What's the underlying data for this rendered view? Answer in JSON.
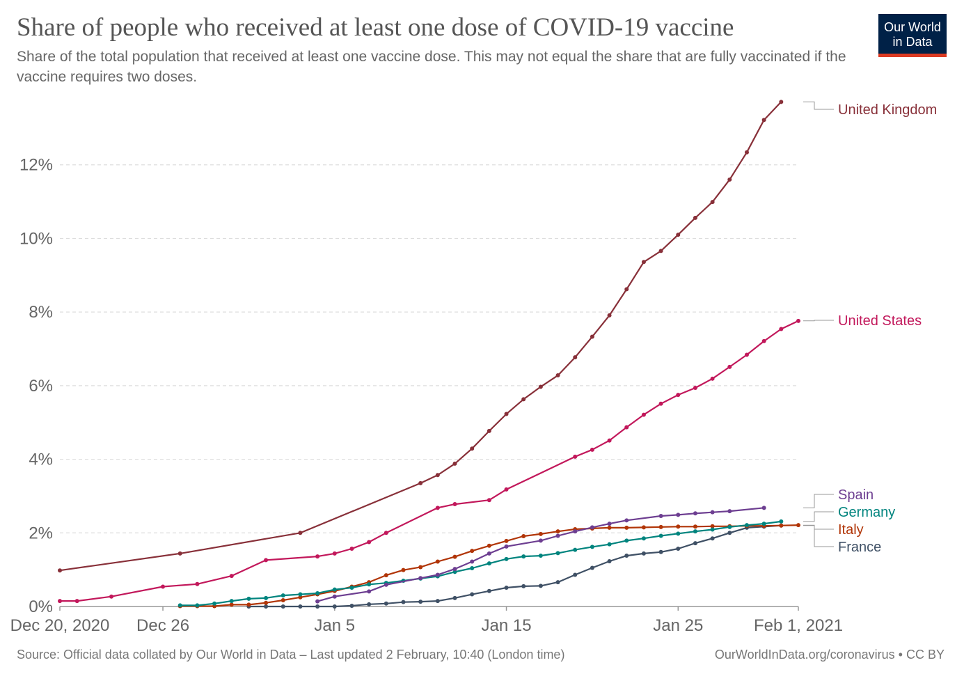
{
  "title": "Share of people who received at least one dose of COVID-19 vaccine",
  "subtitle": "Share of the total population that received at least one vaccine dose. This may not equal the share that are fully vaccinated if the vaccine requires two doses.",
  "logo": {
    "line1": "Our World",
    "line2": "in Data",
    "bg": "#002147",
    "accent": "#dc3a22"
  },
  "footer": {
    "source": "Source: Official data collated by Our World in Data – Last updated 2 February, 10:40 (London time)",
    "credit": "OurWorldInData.org/coronavirus • CC BY"
  },
  "chart_data": {
    "type": "line",
    "x_unit": "date",
    "x_range": [
      "2020-12-20",
      "2021-02-01"
    ],
    "x_ticks": [
      {
        "date": "2020-12-20",
        "label": "Dec 20, 2020"
      },
      {
        "date": "2020-12-26",
        "label": "Dec 26"
      },
      {
        "date": "2021-01-05",
        "label": "Jan 5"
      },
      {
        "date": "2021-01-15",
        "label": "Jan 15"
      },
      {
        "date": "2021-01-25",
        "label": "Jan 25"
      },
      {
        "date": "2021-02-01",
        "label": "Feb 1, 2021"
      }
    ],
    "y_range": [
      0,
      14
    ],
    "y_ticks": [
      {
        "value": 0,
        "label": "0%"
      },
      {
        "value": 2,
        "label": "2%"
      },
      {
        "value": 4,
        "label": "4%"
      },
      {
        "value": 6,
        "label": "6%"
      },
      {
        "value": 8,
        "label": "8%"
      },
      {
        "value": 10,
        "label": "10%"
      },
      {
        "value": 12,
        "label": "12%"
      }
    ],
    "grid": "horizontal dashed",
    "legend": "right, line-end labels",
    "series": [
      {
        "name": "United Kingdom",
        "color": "#883039",
        "points": [
          [
            "2020-12-20",
            0.98
          ],
          [
            "2020-12-27",
            1.44
          ],
          [
            "2021-01-03",
            2.0
          ],
          [
            "2021-01-10",
            3.35
          ],
          [
            "2021-01-11",
            3.57
          ],
          [
            "2021-01-12",
            3.88
          ],
          [
            "2021-01-13",
            4.29
          ],
          [
            "2021-01-14",
            4.77
          ],
          [
            "2021-01-15",
            5.23
          ],
          [
            "2021-01-16",
            5.63
          ],
          [
            "2021-01-17",
            5.97
          ],
          [
            "2021-01-18",
            6.28
          ],
          [
            "2021-01-19",
            6.77
          ],
          [
            "2021-01-20",
            7.33
          ],
          [
            "2021-01-21",
            7.91
          ],
          [
            "2021-01-22",
            8.62
          ],
          [
            "2021-01-23",
            9.36
          ],
          [
            "2021-01-24",
            9.66
          ],
          [
            "2021-01-25",
            10.1
          ],
          [
            "2021-01-26",
            10.56
          ],
          [
            "2021-01-27",
            10.99
          ],
          [
            "2021-01-28",
            11.6
          ],
          [
            "2021-01-29",
            12.34
          ],
          [
            "2021-01-30",
            13.22
          ],
          [
            "2021-01-31",
            13.71
          ]
        ]
      },
      {
        "name": "United States",
        "color": "#c2185b",
        "points": [
          [
            "2020-12-20",
            0.15
          ],
          [
            "2020-12-21",
            0.15
          ],
          [
            "2020-12-23",
            0.27
          ],
          [
            "2020-12-26",
            0.54
          ],
          [
            "2020-12-28",
            0.61
          ],
          [
            "2020-12-30",
            0.83
          ],
          [
            "2021-01-01",
            1.26
          ],
          [
            "2021-01-04",
            1.36
          ],
          [
            "2021-01-05",
            1.44
          ],
          [
            "2021-01-06",
            1.57
          ],
          [
            "2021-01-07",
            1.75
          ],
          [
            "2021-01-08",
            2.0
          ],
          [
            "2021-01-11",
            2.68
          ],
          [
            "2021-01-12",
            2.78
          ],
          [
            "2021-01-14",
            2.89
          ],
          [
            "2021-01-15",
            3.18
          ],
          [
            "2021-01-19",
            4.07
          ],
          [
            "2021-01-20",
            4.26
          ],
          [
            "2021-01-21",
            4.51
          ],
          [
            "2021-01-22",
            4.87
          ],
          [
            "2021-01-23",
            5.21
          ],
          [
            "2021-01-24",
            5.51
          ],
          [
            "2021-01-25",
            5.75
          ],
          [
            "2021-01-26",
            5.94
          ],
          [
            "2021-01-27",
            6.19
          ],
          [
            "2021-01-28",
            6.51
          ],
          [
            "2021-01-29",
            6.84
          ],
          [
            "2021-01-30",
            7.21
          ],
          [
            "2021-01-31",
            7.54
          ],
          [
            "2021-02-01",
            7.76
          ]
        ]
      },
      {
        "name": "Spain",
        "color": "#6d3e91",
        "points": [
          [
            "2021-01-04",
            0.14
          ],
          [
            "2021-01-05",
            0.27
          ],
          [
            "2021-01-07",
            0.41
          ],
          [
            "2021-01-08",
            0.59
          ],
          [
            "2021-01-10",
            0.77
          ],
          [
            "2021-01-11",
            0.86
          ],
          [
            "2021-01-12",
            1.02
          ],
          [
            "2021-01-13",
            1.22
          ],
          [
            "2021-01-14",
            1.44
          ],
          [
            "2021-01-15",
            1.63
          ],
          [
            "2021-01-17",
            1.79
          ],
          [
            "2021-01-18",
            1.92
          ],
          [
            "2021-01-19",
            2.04
          ],
          [
            "2021-01-20",
            2.15
          ],
          [
            "2021-01-21",
            2.25
          ],
          [
            "2021-01-22",
            2.34
          ],
          [
            "2021-01-24",
            2.46
          ],
          [
            "2021-01-25",
            2.49
          ],
          [
            "2021-01-26",
            2.53
          ],
          [
            "2021-01-27",
            2.56
          ],
          [
            "2021-01-28",
            2.59
          ],
          [
            "2021-01-30",
            2.68
          ]
        ]
      },
      {
        "name": "Germany",
        "color": "#00847e",
        "points": [
          [
            "2020-12-27",
            0.03
          ],
          [
            "2020-12-28",
            0.03
          ],
          [
            "2020-12-29",
            0.08
          ],
          [
            "2020-12-30",
            0.15
          ],
          [
            "2020-12-31",
            0.21
          ],
          [
            "2021-01-01",
            0.23
          ],
          [
            "2021-01-02",
            0.3
          ],
          [
            "2021-01-03",
            0.33
          ],
          [
            "2021-01-04",
            0.36
          ],
          [
            "2021-01-05",
            0.46
          ],
          [
            "2021-01-06",
            0.51
          ],
          [
            "2021-01-07",
            0.6
          ],
          [
            "2021-01-08",
            0.64
          ],
          [
            "2021-01-09",
            0.7
          ],
          [
            "2021-01-10",
            0.76
          ],
          [
            "2021-01-11",
            0.82
          ],
          [
            "2021-01-12",
            0.94
          ],
          [
            "2021-01-13",
            1.04
          ],
          [
            "2021-01-14",
            1.17
          ],
          [
            "2021-01-15",
            1.29
          ],
          [
            "2021-01-16",
            1.36
          ],
          [
            "2021-01-17",
            1.38
          ],
          [
            "2021-01-18",
            1.45
          ],
          [
            "2021-01-19",
            1.54
          ],
          [
            "2021-01-20",
            1.62
          ],
          [
            "2021-01-21",
            1.69
          ],
          [
            "2021-01-22",
            1.79
          ],
          [
            "2021-01-23",
            1.85
          ],
          [
            "2021-01-24",
            1.92
          ],
          [
            "2021-01-25",
            1.98
          ],
          [
            "2021-01-26",
            2.04
          ],
          [
            "2021-01-27",
            2.09
          ],
          [
            "2021-01-28",
            2.16
          ],
          [
            "2021-01-29",
            2.21
          ],
          [
            "2021-01-30",
            2.25
          ],
          [
            "2021-01-31",
            2.31
          ]
        ]
      },
      {
        "name": "Italy",
        "color": "#b13507",
        "points": [
          [
            "2020-12-27",
            0.01
          ],
          [
            "2020-12-28",
            0.01
          ],
          [
            "2020-12-29",
            0.01
          ],
          [
            "2020-12-30",
            0.05
          ],
          [
            "2020-12-31",
            0.05
          ],
          [
            "2021-01-01",
            0.1
          ],
          [
            "2021-01-02",
            0.17
          ],
          [
            "2021-01-03",
            0.25
          ],
          [
            "2021-01-04",
            0.33
          ],
          [
            "2021-01-05",
            0.42
          ],
          [
            "2021-01-06",
            0.54
          ],
          [
            "2021-01-07",
            0.66
          ],
          [
            "2021-01-08",
            0.85
          ],
          [
            "2021-01-09",
            0.99
          ],
          [
            "2021-01-10",
            1.07
          ],
          [
            "2021-01-11",
            1.22
          ],
          [
            "2021-01-12",
            1.35
          ],
          [
            "2021-01-13",
            1.51
          ],
          [
            "2021-01-14",
            1.65
          ],
          [
            "2021-01-15",
            1.78
          ],
          [
            "2021-01-16",
            1.91
          ],
          [
            "2021-01-17",
            1.97
          ],
          [
            "2021-01-18",
            2.04
          ],
          [
            "2021-01-19",
            2.1
          ],
          [
            "2021-01-20",
            2.12
          ],
          [
            "2021-01-21",
            2.14
          ],
          [
            "2021-01-22",
            2.14
          ],
          [
            "2021-01-23",
            2.15
          ],
          [
            "2021-01-24",
            2.16
          ],
          [
            "2021-01-25",
            2.17
          ],
          [
            "2021-01-26",
            2.17
          ],
          [
            "2021-01-27",
            2.18
          ],
          [
            "2021-01-28",
            2.18
          ],
          [
            "2021-01-29",
            2.19
          ],
          [
            "2021-01-30",
            2.19
          ],
          [
            "2021-01-31",
            2.2
          ],
          [
            "2021-02-01",
            2.21
          ]
        ]
      },
      {
        "name": "France",
        "color": "#3f5065",
        "points": [
          [
            "2020-12-31",
            0.0
          ],
          [
            "2021-01-01",
            0.0
          ],
          [
            "2021-01-02",
            0.0
          ],
          [
            "2021-01-03",
            0.0
          ],
          [
            "2021-01-04",
            0.0
          ],
          [
            "2021-01-05",
            0.0
          ],
          [
            "2021-01-06",
            0.02
          ],
          [
            "2021-01-07",
            0.06
          ],
          [
            "2021-01-08",
            0.08
          ],
          [
            "2021-01-09",
            0.12
          ],
          [
            "2021-01-10",
            0.13
          ],
          [
            "2021-01-11",
            0.15
          ],
          [
            "2021-01-12",
            0.23
          ],
          [
            "2021-01-13",
            0.33
          ],
          [
            "2021-01-14",
            0.42
          ],
          [
            "2021-01-15",
            0.51
          ],
          [
            "2021-01-16",
            0.55
          ],
          [
            "2021-01-17",
            0.56
          ],
          [
            "2021-01-18",
            0.66
          ],
          [
            "2021-01-19",
            0.86
          ],
          [
            "2021-01-20",
            1.05
          ],
          [
            "2021-01-21",
            1.23
          ],
          [
            "2021-01-22",
            1.38
          ],
          [
            "2021-01-23",
            1.44
          ],
          [
            "2021-01-24",
            1.48
          ],
          [
            "2021-01-25",
            1.57
          ],
          [
            "2021-01-26",
            1.72
          ],
          [
            "2021-01-27",
            1.85
          ],
          [
            "2021-01-28",
            2.0
          ],
          [
            "2021-01-29",
            2.14
          ],
          [
            "2021-01-30",
            2.17
          ],
          [
            "2021-01-31",
            2.2
          ]
        ]
      }
    ]
  }
}
